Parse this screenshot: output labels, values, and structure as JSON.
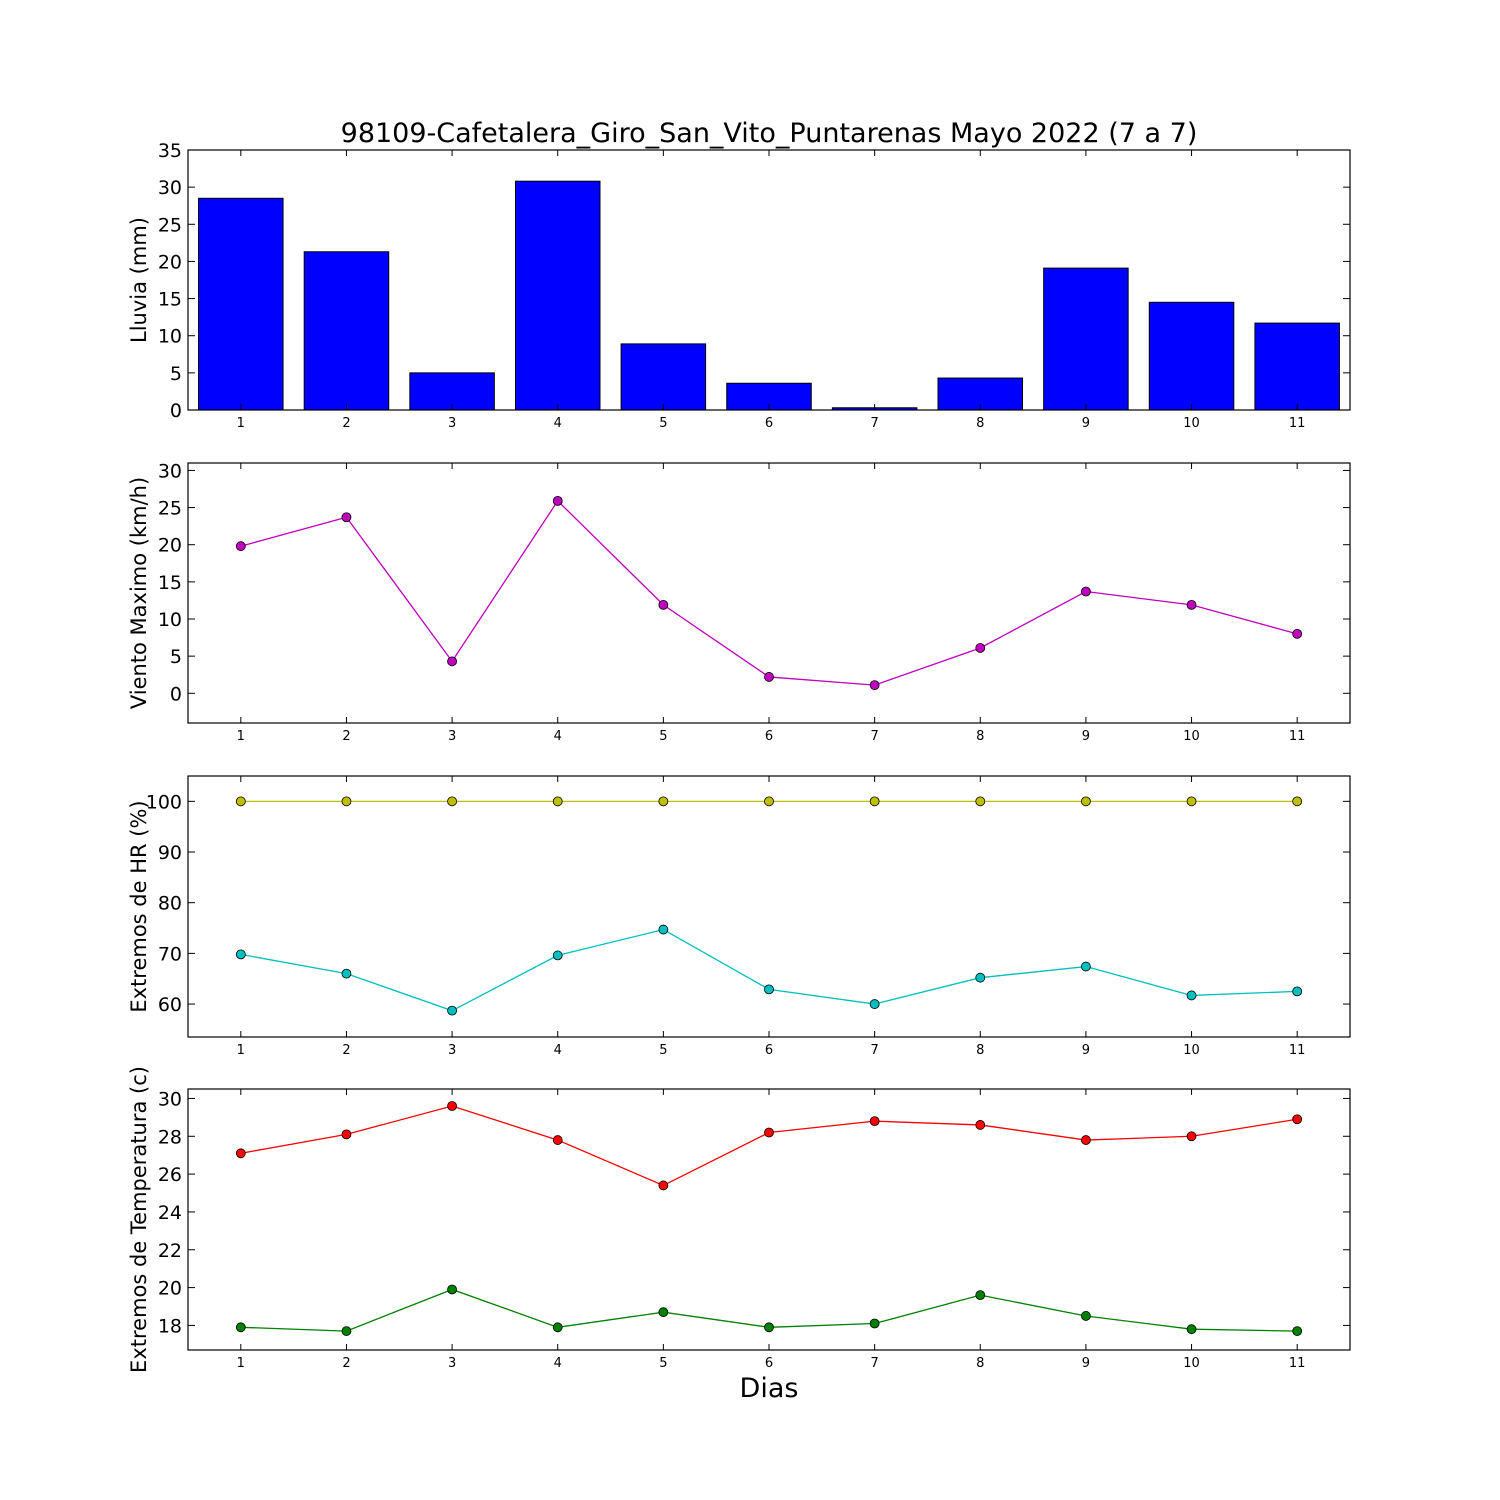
{
  "title": "98109-Cafetalera_Giro_San_Vito_Puntarenas Mayo 2022  (7 a 7)",
  "xlabel": "Dias",
  "chart_data": [
    {
      "type": "bar",
      "ylabel": "Lluvia (mm)",
      "categories": [
        1,
        2,
        3,
        4,
        5,
        6,
        7,
        8,
        9,
        10,
        11
      ],
      "ylim": [
        0,
        35
      ],
      "xlim": [
        0.5,
        11.5
      ],
      "yticks": [
        0,
        5,
        10,
        15,
        20,
        25,
        30,
        35
      ],
      "series": [
        {
          "color": "#0000ff",
          "values": [
            28.5,
            21.3,
            5.0,
            30.8,
            8.9,
            3.6,
            0.3,
            4.3,
            19.1,
            14.5,
            11.7
          ]
        }
      ]
    },
    {
      "type": "line",
      "ylabel": "Viento Maximo (km/h)",
      "x": [
        1,
        2,
        3,
        4,
        5,
        6,
        7,
        8,
        9,
        10,
        11
      ],
      "ylim": [
        -4,
        31
      ],
      "xlim": [
        0.5,
        11.5
      ],
      "yticks": [
        0,
        5,
        10,
        15,
        20,
        25,
        30
      ],
      "series": [
        {
          "color": "#bf00bf",
          "values": [
            19.8,
            23.7,
            4.3,
            25.9,
            11.9,
            2.2,
            1.1,
            6.1,
            13.7,
            11.9,
            8.0
          ]
        }
      ]
    },
    {
      "type": "line",
      "ylabel": "Extremos de HR (%)",
      "x": [
        1,
        2,
        3,
        4,
        5,
        6,
        7,
        8,
        9,
        10,
        11
      ],
      "ylim": [
        53.5,
        105
      ],
      "xlim": [
        0.5,
        11.5
      ],
      "yticks": [
        60,
        70,
        80,
        90,
        100
      ],
      "series": [
        {
          "color": "#bfbf00",
          "values": [
            100,
            100,
            100,
            100,
            100,
            100,
            100,
            100,
            100,
            100,
            100
          ]
        },
        {
          "color": "#00bfbf",
          "values": [
            69.8,
            66.0,
            58.7,
            69.6,
            74.7,
            62.9,
            60.0,
            65.2,
            67.4,
            61.7,
            62.5
          ]
        }
      ]
    },
    {
      "type": "line",
      "ylabel": "Extremos de Temperatura (c)",
      "x": [
        1,
        2,
        3,
        4,
        5,
        6,
        7,
        8,
        9,
        10,
        11
      ],
      "ylim": [
        16.7,
        30.5
      ],
      "xlim": [
        0.5,
        11.5
      ],
      "yticks": [
        18,
        20,
        22,
        24,
        26,
        28,
        30
      ],
      "series": [
        {
          "color": "#ff0000",
          "values": [
            27.1,
            28.1,
            29.6,
            27.8,
            25.4,
            28.2,
            28.8,
            28.6,
            27.8,
            28.0,
            28.9
          ]
        },
        {
          "color": "#008000",
          "values": [
            17.9,
            17.7,
            19.9,
            17.9,
            18.7,
            17.9,
            18.1,
            19.6,
            18.5,
            17.8,
            17.7
          ]
        }
      ]
    }
  ]
}
